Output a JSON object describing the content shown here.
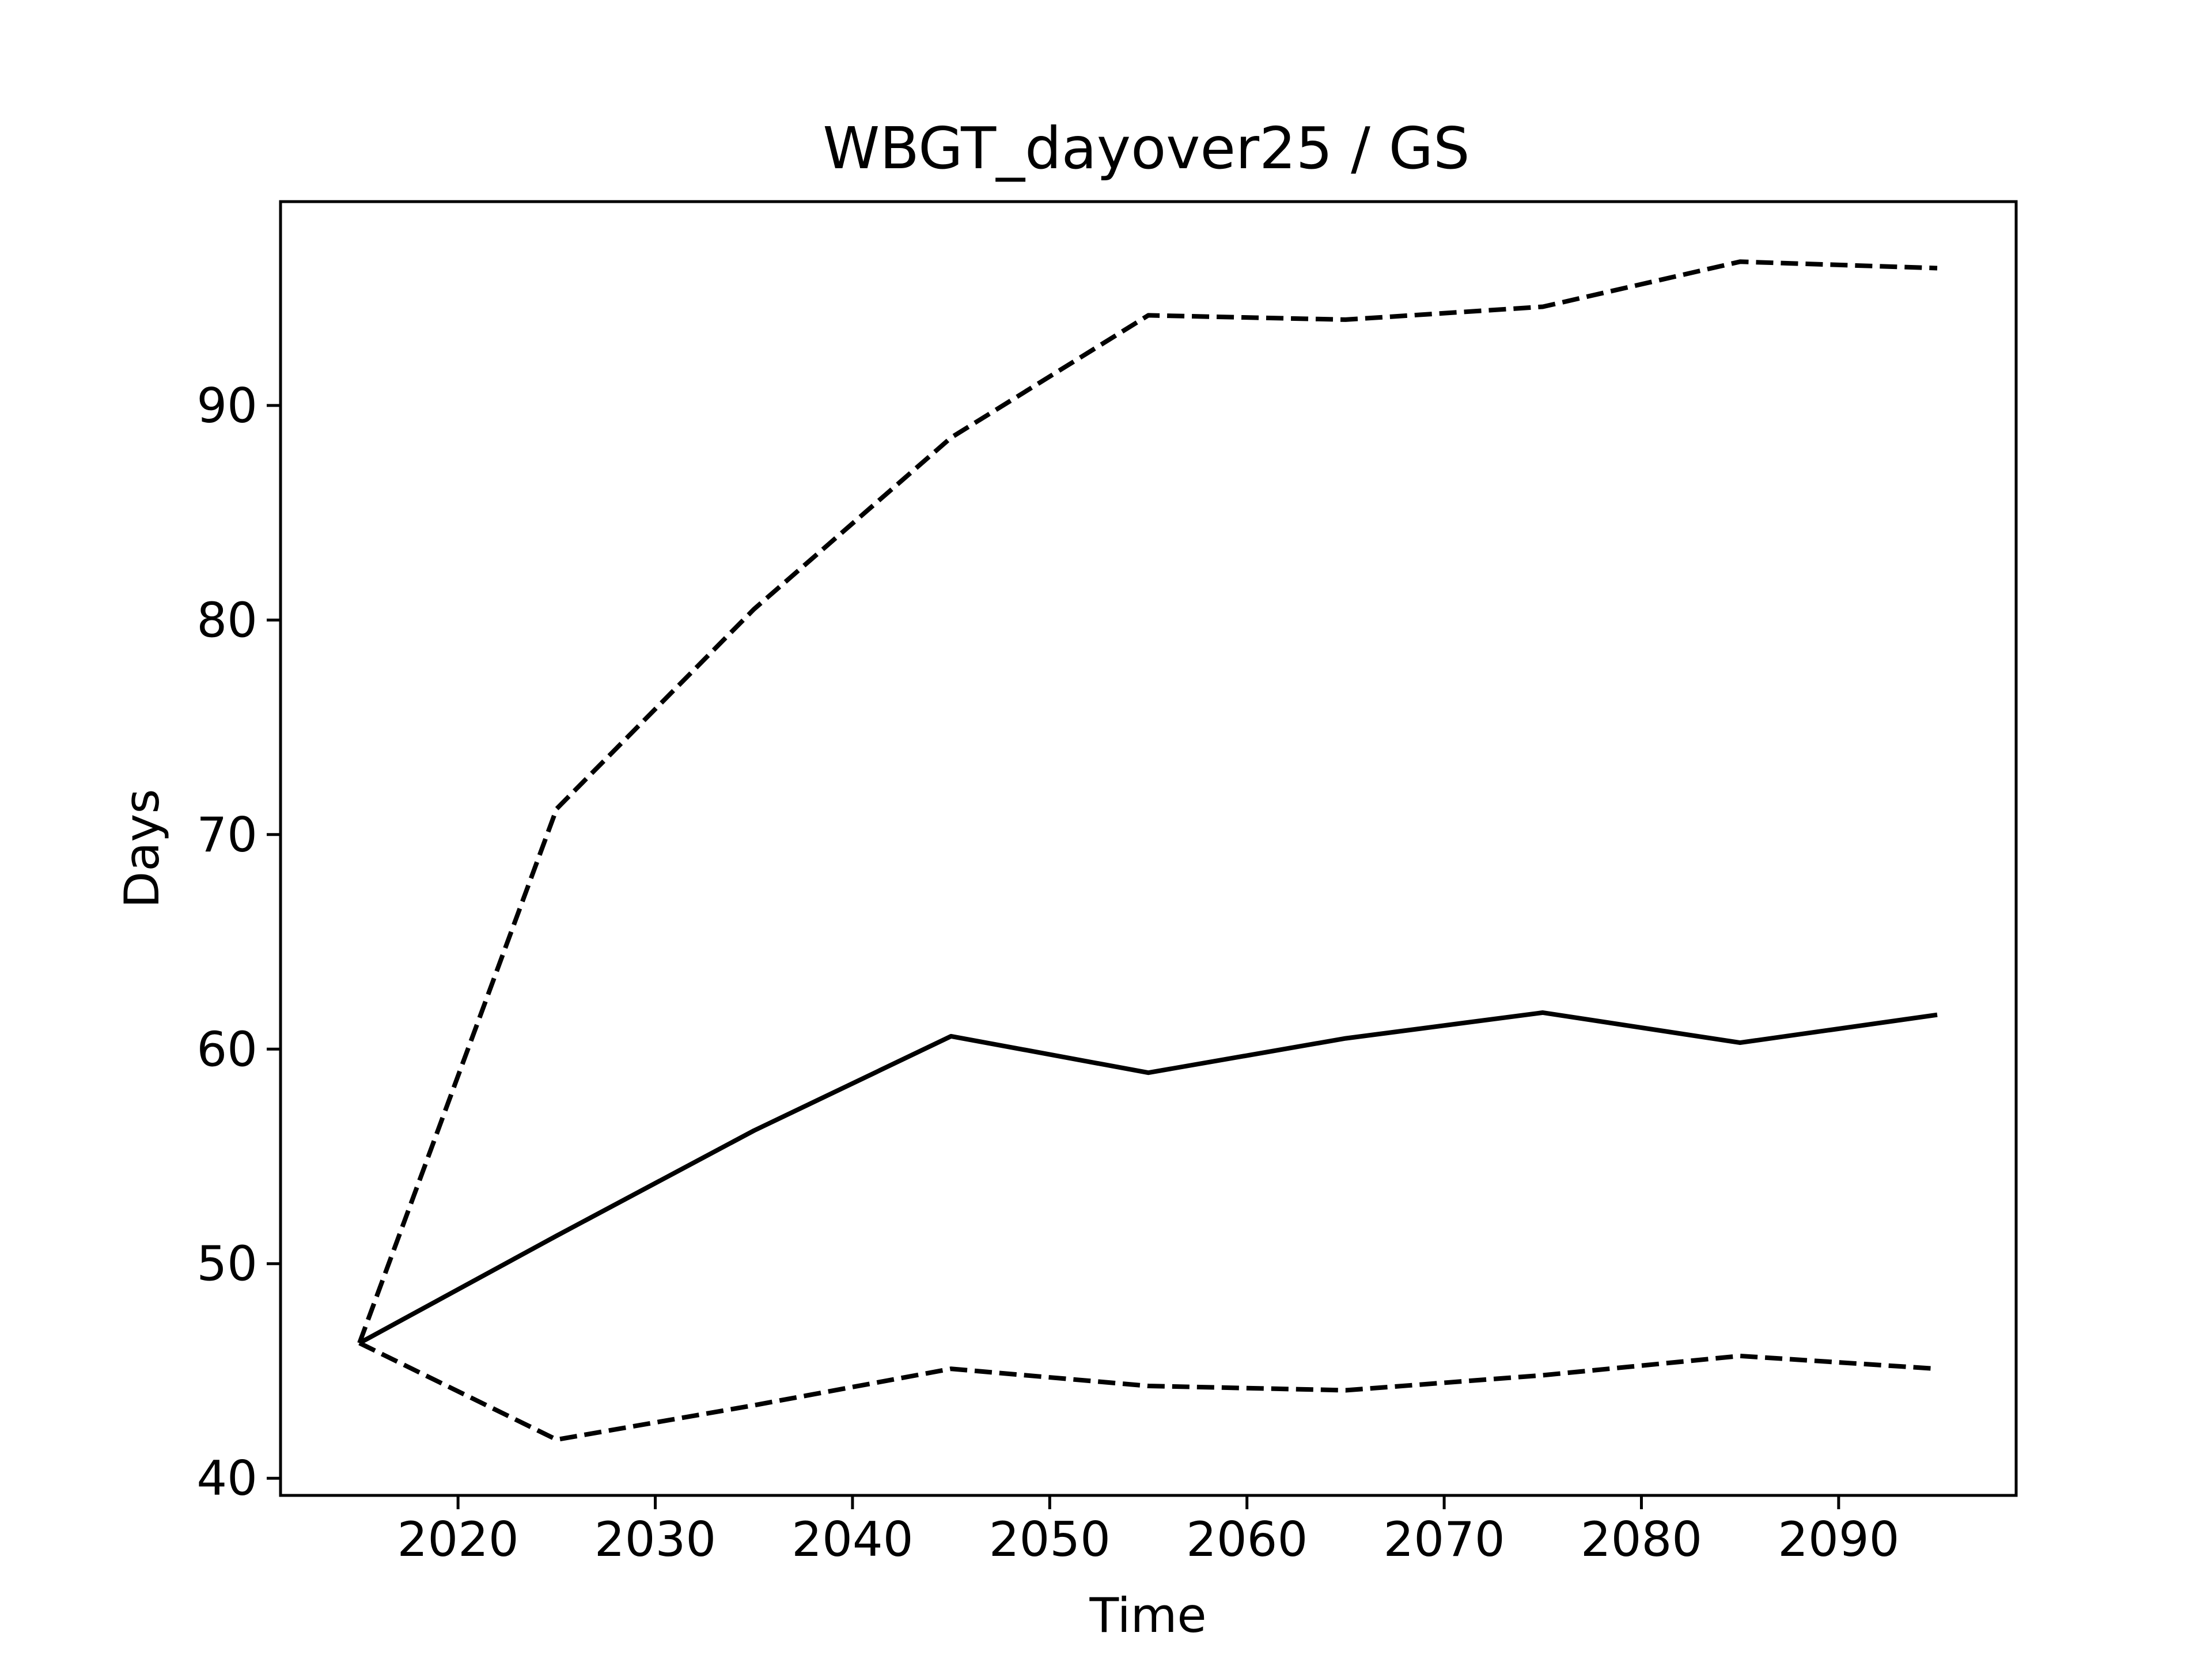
{
  "chart_data": {
    "type": "line",
    "title": "WBGT_dayover25 / GS",
    "xlabel": "Time",
    "ylabel": "Days",
    "xlim": [
      2011,
      2099
    ],
    "ylim": [
      39.2,
      99.5
    ],
    "xticks": [
      2020,
      2030,
      2040,
      2050,
      2060,
      2070,
      2080,
      2090
    ],
    "yticks": [
      40,
      50,
      60,
      70,
      80,
      90
    ],
    "grid": false,
    "x": [
      2015,
      2025,
      2035,
      2045,
      2055,
      2065,
      2075,
      2085,
      2095
    ],
    "series": [
      {
        "style": "dashed",
        "color": "#000000",
        "values": [
          46.3,
          71.2,
          80.5,
          88.5,
          94.2,
          94.0,
          94.6,
          96.7,
          96.4
        ]
      },
      {
        "style": "solid",
        "color": "#000000",
        "values": [
          46.3,
          51.3,
          56.2,
          60.6,
          58.9,
          60.5,
          61.7,
          60.3,
          61.6
        ]
      },
      {
        "style": "dashed",
        "color": "#000000",
        "values": [
          46.3,
          41.8,
          43.4,
          45.1,
          44.3,
          44.1,
          44.8,
          45.7,
          45.1
        ]
      }
    ]
  }
}
